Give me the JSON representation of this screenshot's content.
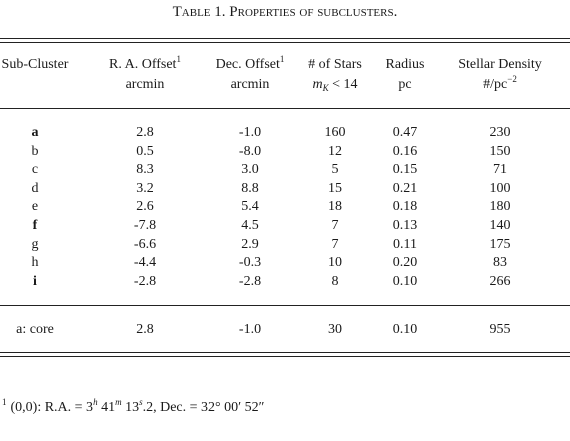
{
  "header": {
    "title": "Table 1. Properties of subclusters."
  },
  "table": {
    "columns": [
      {
        "text": "Sub-Cluster"
      },
      {
        "text": "R. A. Offset",
        "sup": "1",
        "unit": "arcmin"
      },
      {
        "text": "Dec. Offset",
        "sup": "1",
        "unit": "arcmin"
      },
      {
        "text": "# of Stars",
        "unit_main": "m",
        "unit_sub": "K",
        "unit_rest": " < 14"
      },
      {
        "text": "Radius",
        "unit": "pc"
      },
      {
        "text": "Stellar Density",
        "unit": "#/pc",
        "unit_sup": "−2"
      }
    ],
    "rows": [
      [
        "a",
        "2.8",
        "-1.0",
        "160",
        "0.47",
        "230"
      ],
      [
        "b",
        "0.5",
        "-8.0",
        "12",
        "0.16",
        "150"
      ],
      [
        "c",
        "8.3",
        "3.0",
        "5",
        "0.15",
        "71"
      ],
      [
        "d",
        "3.2",
        "8.8",
        "15",
        "0.21",
        "100"
      ],
      [
        "e",
        "2.6",
        "5.4",
        "18",
        "0.18",
        "180"
      ],
      [
        "f",
        "-7.8",
        "4.5",
        "7",
        "0.13",
        "140"
      ],
      [
        "g",
        "-6.6",
        "2.9",
        "7",
        "0.11",
        "175"
      ],
      [
        "h",
        "-4.4",
        "-0.3",
        "10",
        "0.20",
        "83"
      ],
      [
        "i",
        "-2.8",
        "-2.8",
        "8",
        "0.10",
        "266"
      ]
    ],
    "summary_row": [
      "a: core",
      "2.8",
      "-1.0",
      "30",
      "0.10",
      "955"
    ]
  },
  "footnote": {
    "marker": "1",
    "parts": [
      {
        "text": "(0,0): R.A. = 3"
      },
      {
        "sup": "h"
      },
      {
        "text": " 41"
      },
      {
        "sup": "m"
      },
      {
        "text": " 13"
      },
      {
        "sup": "s"
      },
      {
        "text": ".2, Dec. = 32° 00′ 52″"
      }
    ]
  }
}
